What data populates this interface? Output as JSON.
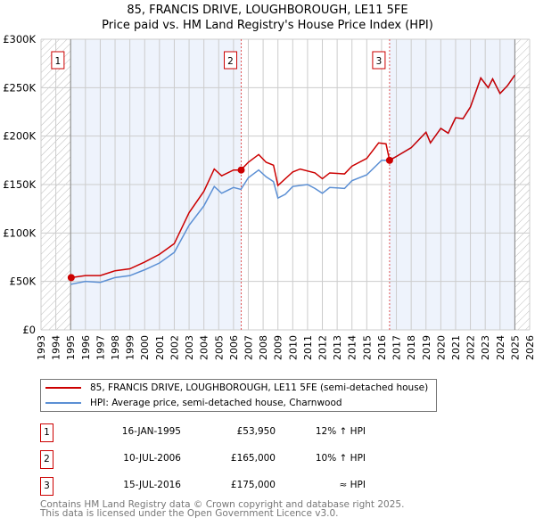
{
  "chart_data": {
    "type": "line",
    "title": "85, FRANCIS DRIVE, LOUGHBOROUGH, LE11 5FE",
    "subtitle": "Price paid vs. HM Land Registry's House Price Index (HPI)",
    "xlim": [
      1993,
      2026
    ],
    "ylim": [
      0,
      300000
    ],
    "x_ticks": [
      "1993",
      "1994",
      "1995",
      "1996",
      "1997",
      "1998",
      "1999",
      "2000",
      "2001",
      "2002",
      "2003",
      "2004",
      "2005",
      "2006",
      "2007",
      "2008",
      "2009",
      "2010",
      "2011",
      "2012",
      "2013",
      "2014",
      "2015",
      "2016",
      "2017",
      "2018",
      "2019",
      "2020",
      "2021",
      "2022",
      "2023",
      "2024",
      "2025",
      "2026"
    ],
    "y_ticks": [
      {
        "v": 0,
        "label": "£0"
      },
      {
        "v": 50000,
        "label": "£50K"
      },
      {
        "v": 100000,
        "label": "£100K"
      },
      {
        "v": 150000,
        "label": "£150K"
      },
      {
        "v": 200000,
        "label": "£200K"
      },
      {
        "v": 250000,
        "label": "£250K"
      },
      {
        "v": 300000,
        "label": "£300K"
      }
    ],
    "grid": true,
    "series": [
      {
        "name": "85, FRANCIS DRIVE, LOUGHBOROUGH, LE11 5FE (semi-detached house)",
        "color": "#cc0000",
        "x": [
          1995.04,
          1996,
          1997,
          1998,
          1999,
          2000,
          2001,
          2002,
          2003,
          2004,
          2004.7,
          2005.2,
          2006,
          2006.5,
          2007,
          2007.7,
          2008.2,
          2008.7,
          2009,
          2010,
          2010.5,
          2011.5,
          2012,
          2012.5,
          2013.5,
          2014,
          2015,
          2015.8,
          2016.3,
          2016.54,
          2017,
          2018,
          2018.5,
          2019,
          2019.3,
          2020,
          2020.5,
          2021,
          2021.5,
          2022,
          2022.7,
          2023.2,
          2023.5,
          2024,
          2024.5,
          2025
        ],
        "y": [
          54000,
          56000,
          56000,
          61000,
          63000,
          70000,
          78000,
          89000,
          121000,
          143000,
          166000,
          159000,
          165000,
          165000,
          173000,
          181000,
          173000,
          170000,
          149000,
          163000,
          166000,
          162000,
          156000,
          162000,
          161000,
          169000,
          177000,
          193000,
          192000,
          175000,
          179000,
          188000,
          196000,
          204000,
          193000,
          208000,
          203000,
          219000,
          218000,
          230000,
          260000,
          250000,
          259000,
          244000,
          252000,
          263000
        ]
      },
      {
        "name": "HPI: Average price, semi-detached house, Charnwood",
        "color": "#5b8fd4",
        "x": [
          1995,
          1996,
          1997,
          1998,
          1999,
          2000,
          2001,
          2002,
          2003,
          2004,
          2004.7,
          2005.2,
          2006,
          2006.5,
          2007,
          2007.7,
          2008.2,
          2008.7,
          2009,
          2009.5,
          2010,
          2011,
          2011.5,
          2012,
          2012.5,
          2013.5,
          2014,
          2015,
          2016,
          2016.5,
          2017,
          2018,
          2018.5,
          2019,
          2019.3,
          2020,
          2020.5,
          2021,
          2021.5,
          2022,
          2022.7,
          2023.2,
          2023.5,
          2024,
          2024.5,
          2025
        ],
        "y": [
          47000,
          50000,
          49000,
          54000,
          56000,
          62000,
          69000,
          80000,
          108000,
          128000,
          148000,
          141000,
          147000,
          145000,
          157000,
          165000,
          158000,
          153000,
          136000,
          140000,
          148000,
          150000,
          146000,
          141000,
          147000,
          146000,
          154000,
          160000,
          175000,
          175000,
          179000,
          188000,
          196000,
          204000,
          193000,
          208000,
          203000,
          219000,
          218000,
          230000,
          260000,
          250000,
          259000,
          244000,
          252000,
          263000
        ]
      }
    ],
    "sales": [
      {
        "n": "1",
        "x": 1995.04,
        "y": 53950,
        "date": "16-JAN-1995",
        "price": "£53,950",
        "rel": "12% ↑ HPI"
      },
      {
        "n": "2",
        "x": 2006.52,
        "y": 165000,
        "date": "10-JUL-2006",
        "price": "£165,000",
        "rel": "10% ↑ HPI"
      },
      {
        "n": "3",
        "x": 2016.54,
        "y": 175000,
        "date": "15-JUL-2016",
        "price": "£175,000",
        "rel": "≈ HPI"
      }
    ],
    "footer": [
      "Contains HM Land Registry data © Crown copyright and database right 2025.",
      "This data is licensed under the Open Government Licence v3.0."
    ]
  }
}
